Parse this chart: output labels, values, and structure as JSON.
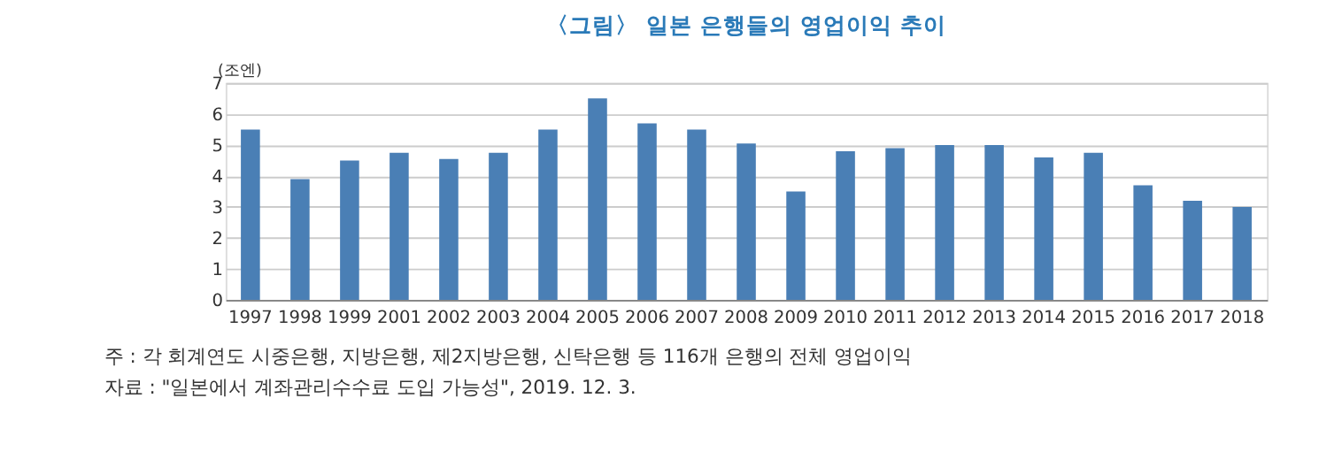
{
  "chart_data": {
    "type": "bar",
    "title": "〈그림〉 일본 은행들의 영업이익 추이",
    "ylabel": "(조엔)",
    "categories": [
      "1997",
      "1998",
      "1999",
      "2001",
      "2002",
      "2003",
      "2004",
      "2005",
      "2006",
      "2007",
      "2008",
      "2009",
      "2010",
      "2011",
      "2012",
      "2013",
      "2014",
      "2015",
      "2016",
      "2017",
      "2018"
    ],
    "values": [
      5.5,
      3.9,
      4.5,
      4.75,
      4.55,
      4.75,
      5.5,
      6.5,
      5.7,
      5.5,
      5.05,
      3.5,
      4.8,
      4.9,
      5.0,
      5.0,
      4.6,
      4.75,
      3.7,
      3.2,
      3.0
    ],
    "color": "#4a7fb5",
    "ylim": [
      0,
      7
    ],
    "yticks": [
      0,
      1,
      2,
      3,
      4,
      5,
      6,
      7
    ],
    "grid": "y",
    "annotations": [
      "주 : 각 회계연도 시중은행, 지방은행, 제2지방은행, 신탁은행 등 116개 은행의 전체 영업이익",
      "자료 : \"일본에서 계좌관리수수료 도입 가능성\", 2019. 12. 3."
    ]
  }
}
